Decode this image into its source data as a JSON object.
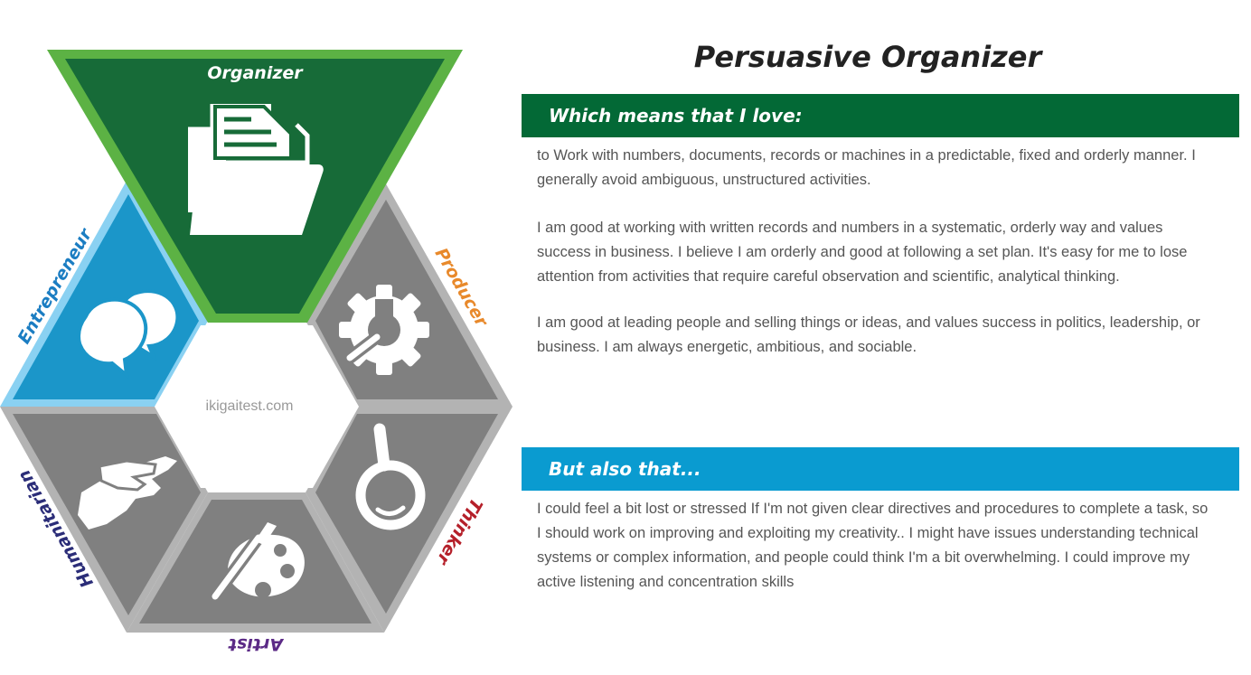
{
  "title": "Persuasive Organizer",
  "sections": {
    "love": {
      "heading": "Which means that I love:",
      "paragraphs": [
        "to Work with numbers, documents, records or machines in a predictable, fixed and orderly manner. I generally avoid ambiguous, unstructured activities.",
        "I am good at working with written records and numbers in a systematic, orderly way and values success in business. I believe I am orderly and good at following a set plan. It's easy for me to lose attention from activities that require careful observation and scientific, analytical thinking.",
        "I am good at leading people and selling things or ideas, and values success in politics, leadership, or business. I am always energetic, ambitious, and sociable."
      ]
    },
    "also": {
      "heading": "But also that...",
      "paragraphs": [
        "I could feel a bit lost or stressed If I'm not given clear directives and procedures to complete a task, so I should work on improving and exploiting my creativity.. I might have issues understanding technical systems or complex information, and people could think I'm a bit overwhelming. I could improve my active listening and concentration skills"
      ]
    }
  },
  "hexagon": {
    "center_text": "ikigaitest.com",
    "segments": {
      "organizer": {
        "label": "Organizer",
        "icon": "folder-documents-icon",
        "color": "#176b38",
        "label_color": "#ffffff"
      },
      "producer": {
        "label": "Producer",
        "icon": "gear-wrench-icon",
        "color": "#808080",
        "label_color": "#e8892b"
      },
      "thinker": {
        "label": "Thinker",
        "icon": "magnifier-icon",
        "color": "#808080",
        "label_color": "#b5202a"
      },
      "artist": {
        "label": "Artist",
        "icon": "palette-brush-icon",
        "color": "#808080",
        "label_color": "#5b2a86"
      },
      "humanitarian": {
        "label": "Humanitarian",
        "icon": "helping-hands-icon",
        "color": "#808080",
        "label_color": "#2b2d78"
      },
      "entrepreneur": {
        "label": "Entrepreneur",
        "icon": "speech-bubbles-icon",
        "color": "#1b96c9",
        "label_color": "#1b7dc2"
      }
    }
  },
  "colors": {
    "love_band": "#036936",
    "also_band": "#0a9bd0",
    "organizer_border": "#5cb244",
    "entrepreneur_border": "#8ad1f2",
    "grey_border": "#b3b3b3"
  }
}
